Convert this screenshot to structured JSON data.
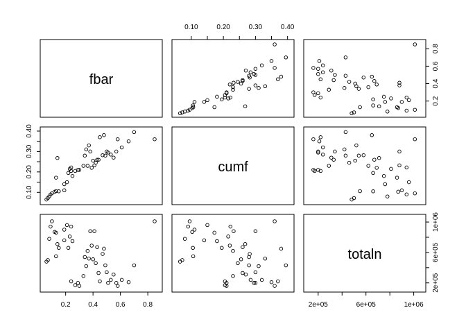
{
  "chart_data": {
    "type": "scatter",
    "title": "",
    "variables": [
      "fbar",
      "cumf",
      "totaln"
    ],
    "ranges": {
      "fbar": [
        0.05,
        0.87
      ],
      "cumf": [
        0.055,
        0.405
      ],
      "totaln": [
        120000,
        1060000
      ]
    },
    "ticks": {
      "fbar": [
        0.2,
        0.4,
        0.6,
        0.8
      ],
      "cumf": [
        0.1,
        0.15,
        0.2,
        0.25,
        0.3,
        0.35,
        0.4
      ],
      "totaln": [
        200000,
        400000,
        600000,
        800000,
        1000000
      ]
    },
    "tick_labels": {
      "fbar_bottom": [
        "0.2",
        "0.4",
        "0.6",
        "0.8"
      ],
      "fbar_right": [
        "0.2",
        "0.4",
        "0.6",
        "0.8"
      ],
      "cumf_top": [
        "0.10",
        "0.20",
        "0.30",
        "0.40"
      ],
      "cumf_left": [
        "0.10",
        "0.20",
        "0.30",
        "0.40"
      ],
      "totaln_bottom": [
        "2e+05",
        "6e+05",
        "1e+06"
      ],
      "totaln_right": [
        "2e+05",
        "6e+05",
        "1e+06"
      ]
    },
    "grid": false,
    "data": {
      "fbar": [
        0.06,
        0.07,
        0.08,
        0.09,
        0.1,
        0.12,
        0.13,
        0.13,
        0.14,
        0.15,
        0.19,
        0.19,
        0.21,
        0.22,
        0.23,
        0.24,
        0.24,
        0.25,
        0.27,
        0.29,
        0.3,
        0.33,
        0.34,
        0.35,
        0.36,
        0.37,
        0.38,
        0.39,
        0.4,
        0.41,
        0.42,
        0.43,
        0.44,
        0.45,
        0.47,
        0.48,
        0.49,
        0.5,
        0.51,
        0.53,
        0.55,
        0.57,
        0.58,
        0.61,
        0.66,
        0.7,
        0.85
      ],
      "cumf": [
        0.065,
        0.072,
        0.08,
        0.09,
        0.095,
        0.103,
        0.106,
        0.172,
        0.268,
        0.105,
        0.11,
        0.14,
        0.15,
        0.195,
        0.215,
        0.205,
        0.222,
        0.18,
        0.205,
        0.21,
        0.21,
        0.23,
        0.28,
        0.31,
        0.23,
        0.33,
        0.3,
        0.22,
        0.255,
        0.232,
        0.245,
        0.26,
        0.26,
        0.37,
        0.282,
        0.38,
        0.28,
        0.3,
        0.295,
        0.285,
        0.27,
        0.3,
        0.36,
        0.32,
        0.35,
        0.395,
        0.36
      ],
      "totaln": [
        480000,
        500000,
        780000,
        940000,
        1010000,
        870000,
        550000,
        860000,
        710000,
        660000,
        900000,
        760000,
        960000,
        660000,
        810000,
        220000,
        940000,
        750000,
        170000,
        200000,
        160000,
        290000,
        540000,
        420000,
        620000,
        520000,
        880000,
        690000,
        510000,
        880000,
        460000,
        670000,
        330000,
        220000,
        580000,
        650000,
        430000,
        340000,
        200000,
        240000,
        310000,
        200000,
        160000,
        240000,
        210000,
        430000,
        1010000
      ]
    }
  },
  "labels": {
    "fbar": "fbar",
    "cumf": "cumf",
    "totaln": "totaln"
  }
}
